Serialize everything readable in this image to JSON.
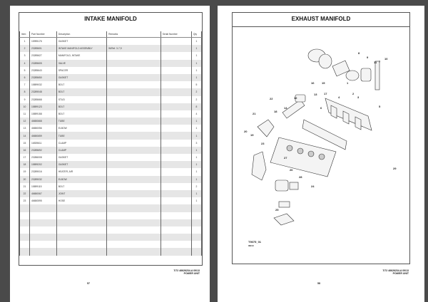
{
  "left_page": {
    "title": "INTAKE MANIFOLD",
    "columns": [
      "Item",
      "Part Number",
      "Description",
      "Remarks",
      "Serial Number",
      "Qty"
    ],
    "rows": [
      {
        "item": "1",
        "part": "15995176",
        "desc": "GASKET",
        "remarks": "",
        "serial": "",
        "qty": "1"
      },
      {
        "item": "2",
        "part": "23285601",
        "desc": "INTAKE MANIFOLD ASSEMBLY",
        "remarks": "W/Ref. 3-7,9",
        "serial": "",
        "qty": "1"
      },
      {
        "item": "3",
        "part": "23285627",
        "desc": "MANIFOLD, INTAKE",
        "remarks": "",
        "serial": "",
        "qty": "1"
      },
      {
        "item": "4",
        "part": "23285605",
        "desc": "VALVE",
        "remarks": "",
        "serial": "",
        "qty": "1"
      },
      {
        "item": "5",
        "part": "23285643",
        "desc": "SPACER",
        "remarks": "",
        "serial": "",
        "qty": "1"
      },
      {
        "item": "6",
        "part": "23285650",
        "desc": "GASKET",
        "remarks": "",
        "serial": "",
        "qty": "1"
      },
      {
        "item": "7",
        "part": "15899032",
        "desc": "BOLT",
        "remarks": "",
        "serial": "",
        "qty": "5"
      },
      {
        "item": "8",
        "part": "23289048",
        "desc": "BOLT",
        "remarks": "",
        "serial": "",
        "qty": "2"
      },
      {
        "item": "9",
        "part": "23285668",
        "desc": "STUD",
        "remarks": "",
        "serial": "",
        "qty": "2"
      },
      {
        "item": "10",
        "part": "15899123",
        "desc": "BOLT",
        "remarks": "",
        "serial": "",
        "qty": "8"
      },
      {
        "item": "11",
        "part": "15899158",
        "desc": "BOLT",
        "remarks": "",
        "serial": "",
        "qty": "4"
      },
      {
        "item": "12",
        "part": "46650668",
        "desc": "TUBE",
        "remarks": "",
        "serial": "",
        "qty": "1"
      },
      {
        "item": "13",
        "part": "46650056",
        "desc": "ELBOW",
        "remarks": "",
        "serial": "",
        "qty": "1"
      },
      {
        "item": "14",
        "part": "46650659",
        "desc": "TUBE",
        "remarks": "",
        "serial": "",
        "qty": "1"
      },
      {
        "item": "15",
        "part": "16539611",
        "desc": "CLAMP",
        "remarks": "",
        "serial": "",
        "qty": "3"
      },
      {
        "item": "16",
        "part": "23285692",
        "desc": "CLAMP",
        "remarks": "",
        "serial": "",
        "qty": "1"
      },
      {
        "item": "17",
        "part": "23286008",
        "desc": "GASKET",
        "remarks": "",
        "serial": "",
        "qty": "1"
      },
      {
        "item": "18",
        "part": "15899202",
        "desc": "GASKET",
        "remarks": "",
        "serial": "",
        "qty": "1"
      },
      {
        "item": "19",
        "part": "23289016",
        "desc": "HEATER, AIR",
        "remarks": "",
        "serial": "",
        "qty": "1"
      },
      {
        "item": "20",
        "part": "23289032",
        "desc": "ELBOW",
        "remarks": "",
        "serial": "",
        "qty": "1"
      },
      {
        "item": "21",
        "part": "15899115",
        "desc": "BOLT",
        "remarks": "",
        "serial": "",
        "qty": "2"
      },
      {
        "item": "22",
        "part": "46650067",
        "desc": "JOINT",
        "remarks": "",
        "serial": "",
        "qty": "1"
      },
      {
        "item": "23",
        "part": "46650595",
        "desc": "HOSE",
        "remarks": "",
        "serial": "",
        "qty": "1"
      }
    ],
    "footer_line1": "7/72  46626234-A  09/13",
    "footer_line2": "POWER UNIT",
    "page_number": "57"
  },
  "right_page": {
    "title": "EXHAUST MANIFOLD",
    "diagram_ref": "T9075_01",
    "diagram_ref2": "06/10",
    "callouts": [
      "1",
      "2",
      "3",
      "4",
      "5",
      "6",
      "7",
      "8",
      "9",
      "10",
      "11",
      "12",
      "13",
      "14",
      "15",
      "16",
      "17",
      "18",
      "19",
      "20",
      "21",
      "22",
      "23",
      "24",
      "25",
      "26",
      "27",
      "28",
      "29"
    ],
    "footer_line1": "7/72  46626234-A  09/13",
    "footer_line2": "POWER UNIT",
    "page_number": "58"
  }
}
